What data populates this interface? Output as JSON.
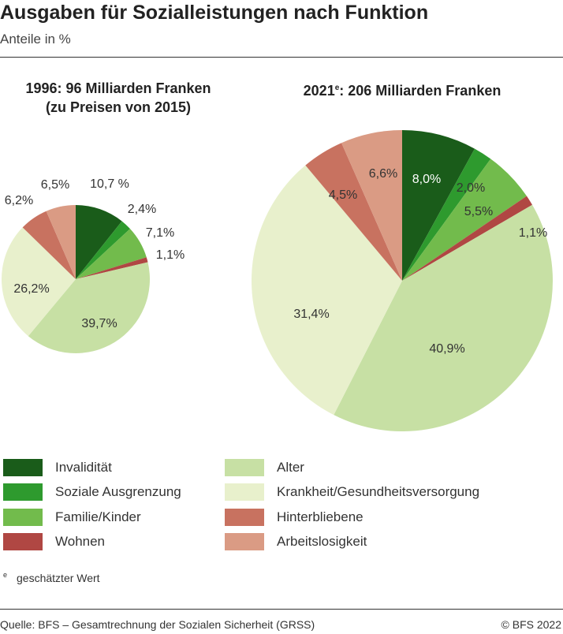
{
  "title": "Ausgaben für Sozialleistungen nach Funktion",
  "subtitle": "Anteile in %",
  "chart_data": [
    {
      "type": "pie",
      "title_line1": "1996: 96 Milliarden Franken",
      "title_line2": "(zu Preisen von 2015)",
      "categories": [
        "Invalidität",
        "Soziale Ausgrenzung",
        "Familie/Kinder",
        "Wohnen",
        "Alter",
        "Krankheit/Gesundheitsversorgung",
        "Hinterbliebene",
        "Arbeitslosigkeit"
      ],
      "values": [
        10.7,
        2.4,
        7.1,
        1.1,
        39.7,
        26.2,
        6.2,
        6.5
      ],
      "labels": [
        "10,7 %",
        "2,4%",
        "7,1%",
        "1,1%",
        "39,7%",
        "26,2%",
        "6,2%",
        "6,5%"
      ]
    },
    {
      "type": "pie",
      "title_year": "2021",
      "title_sup": "e",
      "title_rest": ": 206 Milliarden Franken",
      "categories": [
        "Invalidität",
        "Soziale Ausgrenzung",
        "Familie/Kinder",
        "Wohnen",
        "Alter",
        "Krankheit/Gesundheitsversorgung",
        "Hinterbliebene",
        "Arbeitslosigkeit"
      ],
      "values": [
        8.0,
        2.0,
        5.5,
        1.1,
        40.9,
        31.4,
        4.5,
        6.6
      ],
      "labels": [
        "8,0%",
        "2,0%",
        "5,5%",
        "1,1%",
        "40,9%",
        "31,4%",
        "4,5%",
        "6,6%"
      ]
    }
  ],
  "legend": [
    {
      "label": "Invalidität",
      "color": "#1a5c1a"
    },
    {
      "label": "Soziale Ausgrenzung",
      "color": "#2e9a2e"
    },
    {
      "label": "Familie/Kinder",
      "color": "#72bb4c"
    },
    {
      "label": "Wohnen",
      "color": "#b04743"
    },
    {
      "label": "Alter",
      "color": "#c7e0a4"
    },
    {
      "label": "Krankheit/Gesundheitsversorgung",
      "color": "#e8f0cc"
    },
    {
      "label": "Hinterbliebene",
      "color": "#c87260"
    },
    {
      "label": "Arbeitslosigkeit",
      "color": "#da9b84"
    }
  ],
  "note_mark": "e",
  "note": "geschätzter Wert",
  "source": "Quelle: BFS – Gesamtrechnung der Sozialen Sicherheit (GRSS)",
  "copyright": "© BFS 2022"
}
